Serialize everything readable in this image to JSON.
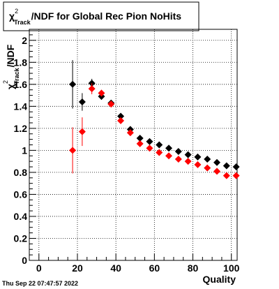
{
  "title": {
    "symbol": "χ",
    "superscript": "2",
    "subscript": "Track",
    "text": "/NDF for Global Rec Pion NoHits"
  },
  "axes": {
    "x_title": "Quality",
    "y_title": {
      "symbol": "χ",
      "superscript": "2",
      "subscript": "Track",
      "text": "/NDF"
    }
  },
  "footer": "Thu Sep 22 07:47:57 2022",
  "colors": {
    "series_1": "#000000",
    "series_2": "#ff0000",
    "frame": "#000000",
    "background": "#ffffff"
  },
  "chart_data": {
    "type": "scatter",
    "xlim": [
      -5,
      103
    ],
    "ylim": [
      0,
      2.1
    ],
    "xticks": [
      0,
      20,
      40,
      60,
      80,
      100
    ],
    "yticks": [
      0,
      0.2,
      0.4,
      0.6,
      0.8,
      1,
      1.2,
      1.4,
      1.6,
      1.8,
      2
    ],
    "xtick_labels": [
      "0",
      "20",
      "40",
      "60",
      "80",
      "100"
    ],
    "ytick_labels": [
      "0",
      "0.2",
      "0.4",
      "0.6",
      "0.8",
      "1",
      "1.2",
      "1.4",
      "1.6",
      "1.8",
      "2"
    ],
    "grid": true,
    "series": [
      {
        "color": "#000000",
        "marker": "diamond",
        "x": [
          17.5,
          22.5,
          27.5,
          32.5,
          37.5,
          42.5,
          47.5,
          52.5,
          57.5,
          62.5,
          67.5,
          72.5,
          77.5,
          82.5,
          87.5,
          92.5,
          97.5,
          102.5
        ],
        "y": [
          1.6,
          1.44,
          1.61,
          1.49,
          1.43,
          1.31,
          1.19,
          1.11,
          1.08,
          1.05,
          1.02,
          0.99,
          0.96,
          0.94,
          0.92,
          0.89,
          0.86,
          0.85
        ],
        "yerr": [
          0.22,
          0.08,
          0.04,
          0.03,
          0.025,
          0.02,
          0.015,
          0.012,
          0.01,
          0.01,
          0.01,
          0.01,
          0.01,
          0.01,
          0.01,
          0.01,
          0.01,
          0.01
        ]
      },
      {
        "color": "#ff0000",
        "marker": "diamond",
        "x": [
          17.5,
          22.5,
          27.5,
          32.5,
          37.5,
          42.5,
          47.5,
          52.5,
          57.5,
          62.5,
          67.5,
          72.5,
          77.5,
          82.5,
          87.5,
          92.5,
          97.5,
          102.5
        ],
        "y": [
          1.0,
          1.17,
          1.56,
          1.52,
          1.42,
          1.27,
          1.16,
          1.06,
          1.02,
          0.98,
          0.95,
          0.92,
          0.9,
          0.87,
          0.84,
          0.81,
          0.77,
          0.77
        ],
        "yerr": [
          0.21,
          0.13,
          0.05,
          0.03,
          0.025,
          0.02,
          0.015,
          0.012,
          0.01,
          0.01,
          0.01,
          0.01,
          0.01,
          0.01,
          0.01,
          0.01,
          0.01,
          0.01
        ]
      }
    ]
  }
}
